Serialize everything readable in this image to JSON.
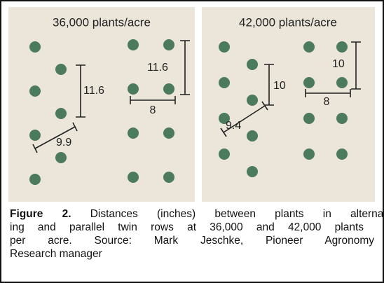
{
  "panels": [
    {
      "title": "36,000 plants/acre",
      "alternating": {
        "row_spacing": "11.6",
        "diagonal": "9.9"
      },
      "twin": {
        "row_spacing": "11.6",
        "width": "8"
      }
    },
    {
      "title": "42,000 plants/acre",
      "alternating": {
        "row_spacing": "10",
        "diagonal": "9.4"
      },
      "twin": {
        "row_spacing": "10",
        "width": "8"
      }
    }
  ],
  "caption": {
    "label": "Figure 2.",
    "lines": [
      "Distances (inches) between plants in alternat-",
      "ing and parallel twin rows at 36,000  and 42,000 plants",
      "per acre. Source: Mark Jeschke, Pioneer Agronomy",
      "Research manager"
    ]
  }
}
